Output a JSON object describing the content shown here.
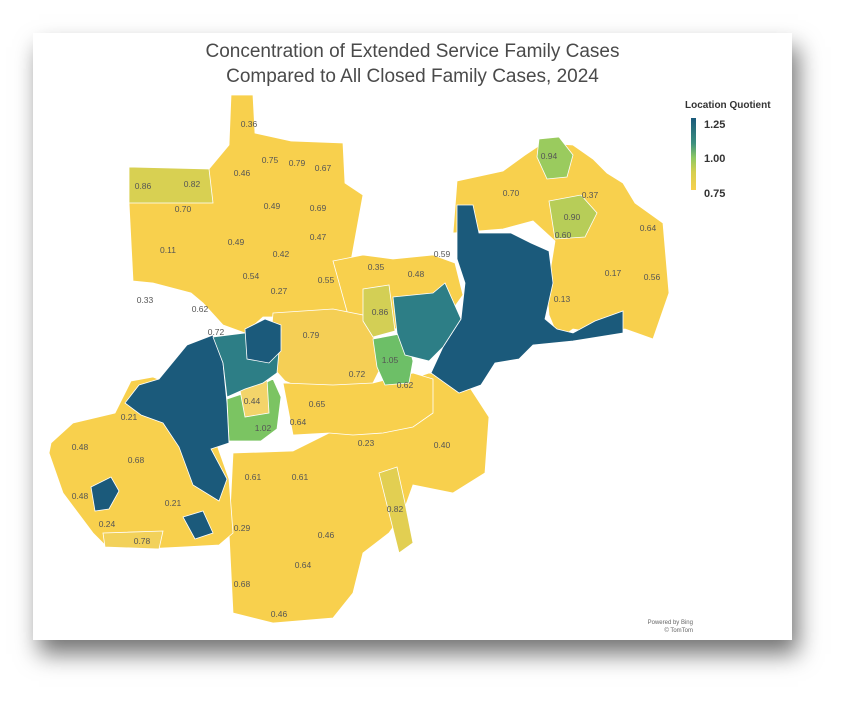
{
  "title": {
    "line1": "Concentration of Extended Service Family Cases",
    "line2": "Compared to All Closed Family Cases, 2024"
  },
  "legend": {
    "title": "Location Quotient",
    "max_label": "1.25",
    "mid_label": "1.00",
    "min_label": "0.75",
    "colors": {
      "high": "#1b5a7b",
      "mid": "#8cc862",
      "low": "#f8d04d"
    }
  },
  "attribution": {
    "line1": "Powered by Bing",
    "line2": "© TomTom"
  },
  "chart_data": {
    "type": "choropleth",
    "measure": "Location Quotient",
    "color_range": [
      0.75,
      1.25
    ],
    "region_labels": [
      "0.36",
      "0.75",
      "0.79",
      "0.67",
      "0.46",
      "0.94",
      "0.86",
      "0.82",
      "0.70",
      "0.49",
      "0.69",
      "0.70",
      "0.37",
      "0.90",
      "0.64",
      "0.49",
      "0.42",
      "0.47",
      "0.60",
      "0.11",
      "0.54",
      "0.35",
      "0.48",
      "0.59",
      "0.17",
      "0.56",
      "0.27",
      "0.55",
      "0.33",
      "0.62",
      "0.13",
      "0.86",
      "0.72",
      "0.79",
      "1.05",
      "0.72",
      "0.62",
      "0.44",
      "0.65",
      "0.21",
      "0.64",
      "1.02",
      "0.23",
      "0.40",
      "0.48",
      "0.68",
      "0.61",
      "0.61",
      "0.48",
      "0.21",
      "0.82",
      "0.24",
      "0.29",
      "0.46",
      "0.78",
      "0.64",
      "0.68",
      "0.46"
    ]
  }
}
